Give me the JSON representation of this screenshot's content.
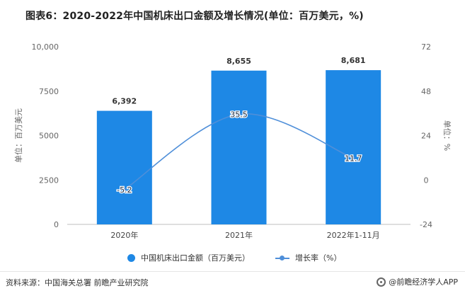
{
  "title": "图表6：2020-2022年中国机床出口金额及增长情况(单位：百万美元，%)",
  "chart_data": {
    "type": "bar",
    "categories": [
      "2020年",
      "2021年",
      "2022年1-11月"
    ],
    "series": [
      {
        "name": "中国机床出口金额（百万美元）",
        "type": "bar",
        "axis": "left",
        "values": [
          6392,
          8655,
          8681
        ],
        "labels": [
          "6,392",
          "8,655",
          "8,681"
        ]
      },
      {
        "name": "增长率（%）",
        "type": "line",
        "axis": "right",
        "values": [
          -5.2,
          35.5,
          11.7
        ],
        "labels": [
          "-5.2",
          "35.5",
          "11.7"
        ]
      }
    ],
    "ylabel": "单位：百万美元",
    "y2label": "单位：%",
    "ylim": [
      0,
      10000
    ],
    "y2lim": [
      -24,
      72
    ],
    "yticks": [
      "0",
      "2500",
      "5000",
      "7500",
      "10,000"
    ],
    "y2ticks": [
      "-24",
      "0",
      "24",
      "48",
      "72"
    ],
    "grid": false,
    "legend_position": "bottom",
    "bar_color": "#1e88e5",
    "line_color": "#4f8fd9"
  },
  "legend": {
    "bar_label": "中国机床出口金额（百万美元）",
    "line_label": "增长率（%）"
  },
  "source": "资料来源：中国海关总署 前瞻产业研究院",
  "brand": "@前瞻经济学人APP"
}
